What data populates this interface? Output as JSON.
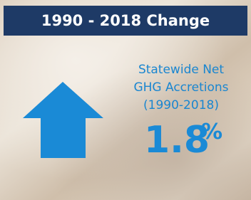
{
  "header": {
    "title": "1990 - 2018 Change"
  },
  "body": {
    "lines": [
      "Statewide Net",
      "GHG Accretions",
      "(1990-2018)"
    ],
    "value": "1.8",
    "unit": "%"
  }
}
